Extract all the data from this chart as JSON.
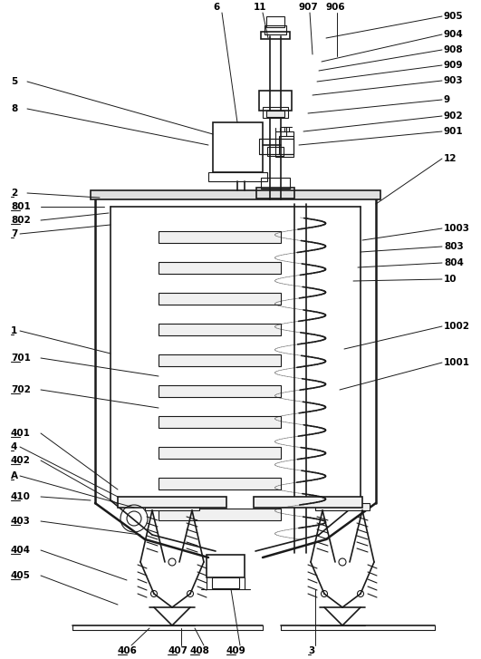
{
  "bg_color": "#ffffff",
  "line_color": "#1a1a1a",
  "fig_width": 5.31,
  "fig_height": 7.27
}
